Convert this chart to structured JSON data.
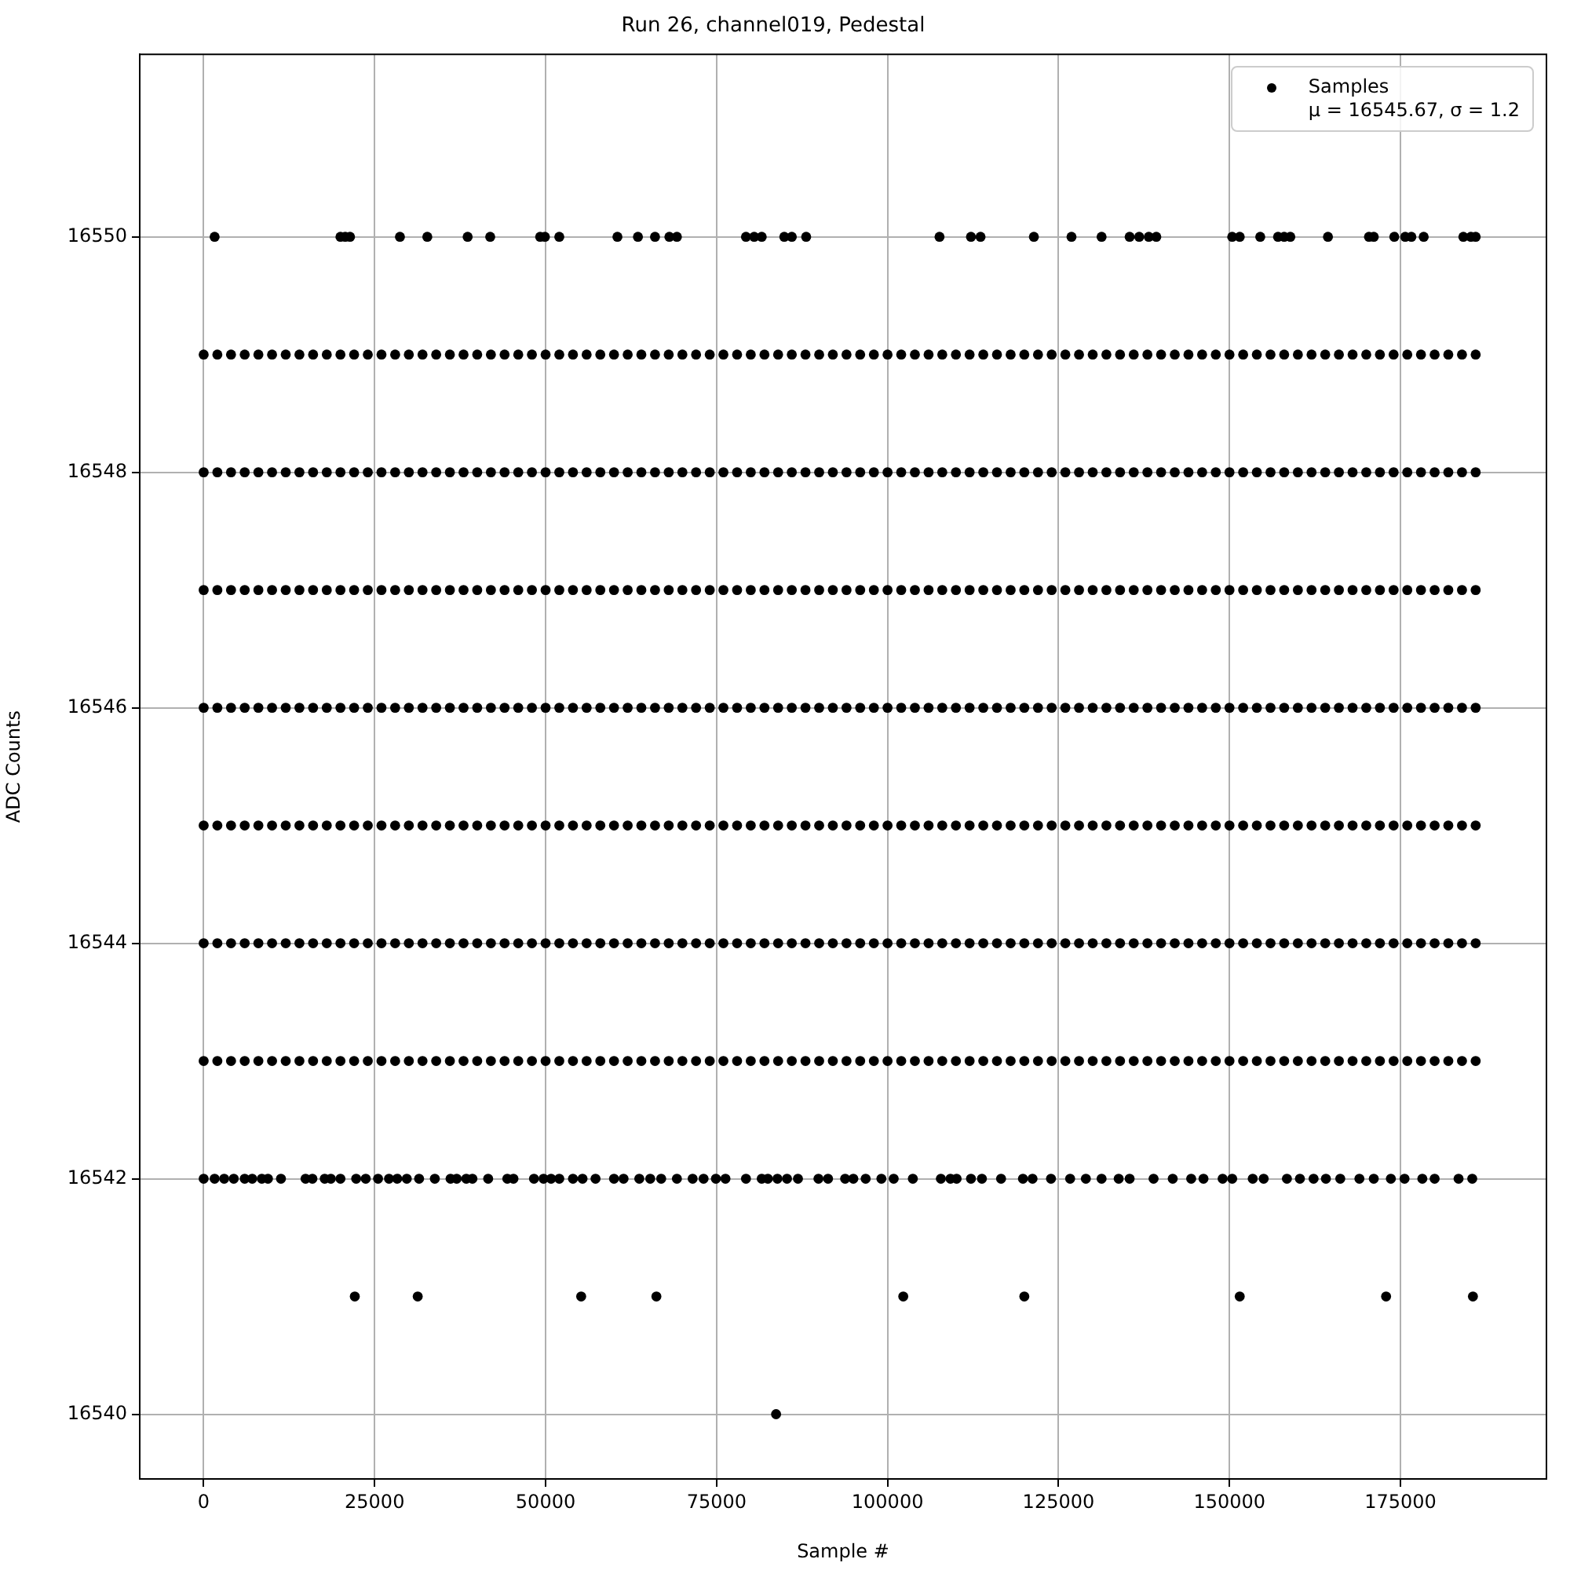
{
  "chart_data": {
    "type": "scatter",
    "title": "Run 26, channel019, Pedestal",
    "xlabel": "Sample #",
    "ylabel": "ADC Counts",
    "annotations": [
      "μ = 16545.67, σ = 1.2"
    ],
    "xlim": [
      -9350,
      196350
    ],
    "xticks": [
      0,
      25000,
      50000,
      75000,
      100000,
      125000,
      150000,
      175000
    ],
    "ylim": [
      16539.45,
      16551.55
    ],
    "yticks": [
      16540,
      16542,
      16544,
      16546,
      16548,
      16550
    ],
    "grid": true,
    "legend": "top right",
    "marker": "circle",
    "x": [
      0,
      2000,
      4000,
      6000,
      8000,
      10000,
      12000,
      14000,
      16000,
      18000,
      20000,
      22000,
      24000,
      26000,
      28000,
      30000,
      32000,
      34000,
      36000,
      38000,
      40000,
      42000,
      44000,
      46000,
      48000,
      50000,
      52000,
      54000,
      56000,
      58000,
      60000,
      62000,
      64000,
      66000,
      68000,
      70000,
      72000,
      74000,
      76000,
      78000,
      80000,
      82000,
      84000,
      86000,
      88000,
      90000,
      92000,
      94000,
      96000,
      98000,
      100000,
      102000,
      104000,
      106000,
      108000,
      110000,
      112000,
      114000,
      116000,
      118000,
      120000,
      122000,
      124000,
      126000,
      128000,
      130000,
      132000,
      134000,
      136000,
      138000,
      140000,
      142000,
      144000,
      146000,
      148000,
      150000,
      152000,
      154000,
      156000,
      158000,
      160000,
      162000,
      164000,
      166000,
      168000,
      170000,
      172000,
      174000,
      176000,
      178000,
      180000,
      182000,
      184000,
      186000
    ],
    "series": [
      {
        "name": "Samples",
        "color": "#000000",
        "x": [
          1600,
          20000,
          20700,
          21400,
          28700,
          32700,
          38600,
          41900,
          49200,
          49900,
          52000,
          60500,
          63500,
          66000,
          68100,
          69200,
          79300,
          80500,
          81600,
          84900,
          86000,
          88100,
          107600,
          112200,
          113600,
          121400,
          126900,
          131300,
          135400,
          136800,
          138200,
          139300,
          150400,
          151500,
          154500,
          157100,
          158000,
          158900,
          164400,
          170400,
          171100,
          174100,
          175700,
          176600,
          178400,
          184200,
          185300,
          186000
        ],
        "values": [
          16550,
          16550,
          16550,
          16550,
          16550,
          16550,
          16550,
          16550,
          16550,
          16550,
          16550,
          16550,
          16550,
          16550,
          16550,
          16550,
          16550,
          16550,
          16550,
          16550,
          16550,
          16550,
          16550,
          16550,
          16550,
          16550,
          16550,
          16550,
          16550,
          16550,
          16550,
          16550,
          16550,
          16550,
          16550,
          16550,
          16550,
          16550,
          16550,
          16550,
          16550,
          16550,
          16550,
          16550,
          16550,
          16550,
          16550,
          16550
        ]
      },
      {
        "color": "#000000",
        "values": [
          16549,
          16549,
          16549,
          16549,
          16549,
          16549,
          16549,
          16549,
          16549,
          16549,
          16549,
          16549,
          16549,
          16549,
          16549,
          16549,
          16549,
          16549,
          16549,
          16549,
          16549,
          16549,
          16549,
          16549,
          16549,
          16549,
          16549,
          16549,
          16549,
          16549,
          16549,
          16549,
          16549,
          16549,
          16549,
          16549,
          16549,
          16549,
          16549,
          16549,
          16549,
          16549,
          16549,
          16549,
          16549,
          16549,
          16549,
          16549,
          16549,
          16549,
          16549,
          16549,
          16549,
          16549,
          16549,
          16549,
          16549,
          16549,
          16549,
          16549,
          16549,
          16549,
          16549,
          16549,
          16549,
          16549,
          16549,
          16549,
          16549,
          16549,
          16549,
          16549,
          16549,
          16549,
          16549,
          16549,
          16549,
          16549,
          16549,
          16549,
          16549,
          16549,
          16549,
          16549,
          16549,
          16549,
          16549,
          16549,
          16549,
          16549,
          16549,
          16549,
          16549,
          16549
        ]
      },
      {
        "color": "#000000",
        "values": [
          16548,
          16548,
          16548,
          16548,
          16548,
          16548,
          16548,
          16548,
          16548,
          16548,
          16548,
          16548,
          16548,
          16548,
          16548,
          16548,
          16548,
          16548,
          16548,
          16548,
          16548,
          16548,
          16548,
          16548,
          16548,
          16548,
          16548,
          16548,
          16548,
          16548,
          16548,
          16548,
          16548,
          16548,
          16548,
          16548,
          16548,
          16548,
          16548,
          16548,
          16548,
          16548,
          16548,
          16548,
          16548,
          16548,
          16548,
          16548,
          16548,
          16548,
          16548,
          16548,
          16548,
          16548,
          16548,
          16548,
          16548,
          16548,
          16548,
          16548,
          16548,
          16548,
          16548,
          16548,
          16548,
          16548,
          16548,
          16548,
          16548,
          16548,
          16548,
          16548,
          16548,
          16548,
          16548,
          16548,
          16548,
          16548,
          16548,
          16548,
          16548,
          16548,
          16548,
          16548,
          16548,
          16548,
          16548,
          16548,
          16548,
          16548,
          16548,
          16548,
          16548,
          16548
        ]
      },
      {
        "color": "#000000",
        "values": [
          16547,
          16547,
          16547,
          16547,
          16547,
          16547,
          16547,
          16547,
          16547,
          16547,
          16547,
          16547,
          16547,
          16547,
          16547,
          16547,
          16547,
          16547,
          16547,
          16547,
          16547,
          16547,
          16547,
          16547,
          16547,
          16547,
          16547,
          16547,
          16547,
          16547,
          16547,
          16547,
          16547,
          16547,
          16547,
          16547,
          16547,
          16547,
          16547,
          16547,
          16547,
          16547,
          16547,
          16547,
          16547,
          16547,
          16547,
          16547,
          16547,
          16547,
          16547,
          16547,
          16547,
          16547,
          16547,
          16547,
          16547,
          16547,
          16547,
          16547,
          16547,
          16547,
          16547,
          16547,
          16547,
          16547,
          16547,
          16547,
          16547,
          16547,
          16547,
          16547,
          16547,
          16547,
          16547,
          16547,
          16547,
          16547,
          16547,
          16547,
          16547,
          16547,
          16547,
          16547,
          16547,
          16547,
          16547,
          16547,
          16547,
          16547,
          16547,
          16547,
          16547,
          16547
        ]
      },
      {
        "color": "#000000",
        "values": [
          16546,
          16546,
          16546,
          16546,
          16546,
          16546,
          16546,
          16546,
          16546,
          16546,
          16546,
          16546,
          16546,
          16546,
          16546,
          16546,
          16546,
          16546,
          16546,
          16546,
          16546,
          16546,
          16546,
          16546,
          16546,
          16546,
          16546,
          16546,
          16546,
          16546,
          16546,
          16546,
          16546,
          16546,
          16546,
          16546,
          16546,
          16546,
          16546,
          16546,
          16546,
          16546,
          16546,
          16546,
          16546,
          16546,
          16546,
          16546,
          16546,
          16546,
          16546,
          16546,
          16546,
          16546,
          16546,
          16546,
          16546,
          16546,
          16546,
          16546,
          16546,
          16546,
          16546,
          16546,
          16546,
          16546,
          16546,
          16546,
          16546,
          16546,
          16546,
          16546,
          16546,
          16546,
          16546,
          16546,
          16546,
          16546,
          16546,
          16546,
          16546,
          16546,
          16546,
          16546,
          16546,
          16546,
          16546,
          16546,
          16546,
          16546,
          16546,
          16546,
          16546,
          16546
        ]
      },
      {
        "color": "#000000",
        "values": [
          16545,
          16545,
          16545,
          16545,
          16545,
          16545,
          16545,
          16545,
          16545,
          16545,
          16545,
          16545,
          16545,
          16545,
          16545,
          16545,
          16545,
          16545,
          16545,
          16545,
          16545,
          16545,
          16545,
          16545,
          16545,
          16545,
          16545,
          16545,
          16545,
          16545,
          16545,
          16545,
          16545,
          16545,
          16545,
          16545,
          16545,
          16545,
          16545,
          16545,
          16545,
          16545,
          16545,
          16545,
          16545,
          16545,
          16545,
          16545,
          16545,
          16545,
          16545,
          16545,
          16545,
          16545,
          16545,
          16545,
          16545,
          16545,
          16545,
          16545,
          16545,
          16545,
          16545,
          16545,
          16545,
          16545,
          16545,
          16545,
          16545,
          16545,
          16545,
          16545,
          16545,
          16545,
          16545,
          16545,
          16545,
          16545,
          16545,
          16545,
          16545,
          16545,
          16545,
          16545,
          16545,
          16545,
          16545,
          16545,
          16545,
          16545,
          16545,
          16545,
          16545,
          16545
        ]
      },
      {
        "color": "#000000",
        "values": [
          16544,
          16544,
          16544,
          16544,
          16544,
          16544,
          16544,
          16544,
          16544,
          16544,
          16544,
          16544,
          16544,
          16544,
          16544,
          16544,
          16544,
          16544,
          16544,
          16544,
          16544,
          16544,
          16544,
          16544,
          16544,
          16544,
          16544,
          16544,
          16544,
          16544,
          16544,
          16544,
          16544,
          16544,
          16544,
          16544,
          16544,
          16544,
          16544,
          16544,
          16544,
          16544,
          16544,
          16544,
          16544,
          16544,
          16544,
          16544,
          16544,
          16544,
          16544,
          16544,
          16544,
          16544,
          16544,
          16544,
          16544,
          16544,
          16544,
          16544,
          16544,
          16544,
          16544,
          16544,
          16544,
          16544,
          16544,
          16544,
          16544,
          16544,
          16544,
          16544,
          16544,
          16544,
          16544,
          16544,
          16544,
          16544,
          16544,
          16544,
          16544,
          16544,
          16544,
          16544,
          16544,
          16544,
          16544,
          16544,
          16544,
          16544,
          16544,
          16544,
          16544,
          16544
        ]
      },
      {
        "color": "#000000",
        "values": [
          16543,
          16543,
          16543,
          16543,
          16543,
          16543,
          16543,
          16543,
          16543,
          16543,
          16543,
          16543,
          16543,
          16543,
          16543,
          16543,
          16543,
          16543,
          16543,
          16543,
          16543,
          16543,
          16543,
          16543,
          16543,
          16543,
          16543,
          16543,
          16543,
          16543,
          16543,
          16543,
          16543,
          16543,
          16543,
          16543,
          16543,
          16543,
          16543,
          16543,
          16543,
          16543,
          16543,
          16543,
          16543,
          16543,
          16543,
          16543,
          16543,
          16543,
          16543,
          16543,
          16543,
          16543,
          16543,
          16543,
          16543,
          16543,
          16543,
          16543,
          16543,
          16543,
          16543,
          16543,
          16543,
          16543,
          16543,
          16543,
          16543,
          16543,
          16543,
          16543,
          16543,
          16543,
          16543,
          16543,
          16543,
          16543,
          16543,
          16543,
          16543,
          16543,
          16543,
          16543,
          16543,
          16543,
          16543,
          16543,
          16543,
          16543,
          16543,
          16543,
          16543,
          16543
        ]
      },
      {
        "color": "#000000",
        "x": [
          0,
          1600,
          3000,
          4400,
          6000,
          7100,
          8500,
          9400,
          11300,
          14900,
          15900,
          17700,
          18600,
          20000,
          22300,
          23700,
          25500,
          27100,
          28300,
          29700,
          31500,
          33800,
          36100,
          37000,
          38400,
          39300,
          41600,
          44400,
          45300,
          48300,
          49700,
          50800,
          52000,
          54000,
          55400,
          57300,
          60000,
          61400,
          63700,
          65300,
          66900,
          69200,
          71500,
          73100,
          74900,
          76300,
          79300,
          81600,
          82500,
          83900,
          85300,
          86900,
          89900,
          91300,
          93800,
          95000,
          96800,
          99100,
          100900,
          103700,
          107800,
          109200,
          110100,
          112200,
          113800,
          116600,
          119800,
          121200,
          123900,
          126700,
          129000,
          131300,
          133800,
          135400,
          138900,
          141700,
          144400,
          146200,
          149000,
          150400,
          153400,
          155000,
          158400,
          160300,
          162300,
          164100,
          166200,
          169000,
          171100,
          173600,
          175600,
          178200,
          180000,
          183500,
          185500
        ],
        "values": [
          16542,
          16542,
          16542,
          16542,
          16542,
          16542,
          16542,
          16542,
          16542,
          16542,
          16542,
          16542,
          16542,
          16542,
          16542,
          16542,
          16542,
          16542,
          16542,
          16542,
          16542,
          16542,
          16542,
          16542,
          16542,
          16542,
          16542,
          16542,
          16542,
          16542,
          16542,
          16542,
          16542,
          16542,
          16542,
          16542,
          16542,
          16542,
          16542,
          16542,
          16542,
          16542,
          16542,
          16542,
          16542,
          16542,
          16542,
          16542,
          16542,
          16542,
          16542,
          16542,
          16542,
          16542,
          16542,
          16542,
          16542,
          16542,
          16542,
          16542,
          16542,
          16542,
          16542,
          16542,
          16542,
          16542,
          16542,
          16542,
          16542,
          16542,
          16542,
          16542,
          16542,
          16542,
          16542,
          16542,
          16542,
          16542,
          16542,
          16542,
          16542,
          16542,
          16542,
          16542,
          16542,
          16542,
          16542,
          16542,
          16542,
          16542,
          16542,
          16542,
          16542,
          16542,
          16542
        ]
      },
      {
        "color": "#000000",
        "x": [
          22100,
          31300,
          55200,
          66200,
          102300,
          120000,
          151500,
          172900,
          185600
        ],
        "values": [
          16541,
          16541,
          16541,
          16541,
          16541,
          16541,
          16541,
          16541,
          16541
        ]
      },
      {
        "color": "#000000",
        "x": [
          83700
        ],
        "values": [
          16540
        ]
      }
    ]
  }
}
